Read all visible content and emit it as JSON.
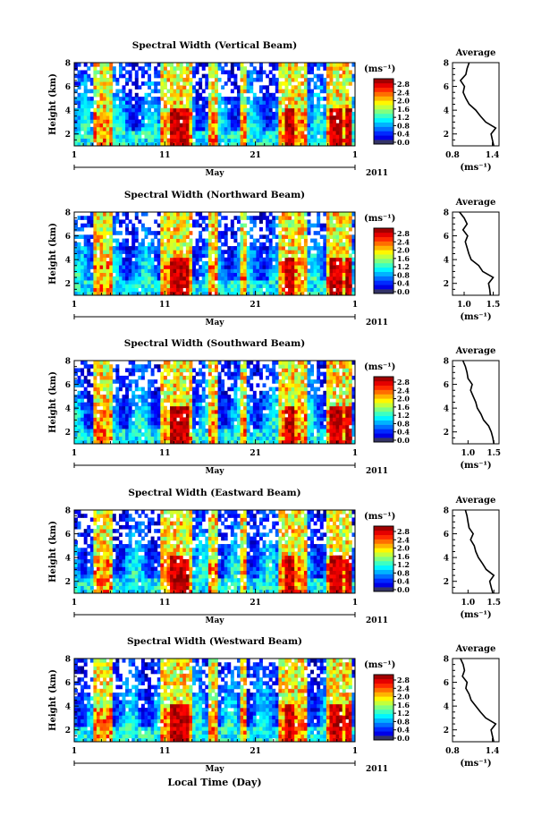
{
  "figure": {
    "footer_xlabel": "Local Time (Day)"
  },
  "chart_data": [
    {
      "type": "heatmap",
      "title": "Spectral Width (Vertical Beam)",
      "ylabel": "Height (km)",
      "ylim": [
        1,
        8
      ],
      "yticks": [
        2,
        4,
        6,
        8
      ],
      "xticks": [
        "1",
        "11",
        "21",
        "1"
      ],
      "month": "May",
      "year": "2011",
      "colorbar": {
        "unit": "(ms⁻¹)",
        "ticks": [
          "0.0",
          "0.4",
          "0.8",
          "1.2",
          "1.6",
          "2.0",
          "2.4",
          "2.8"
        ],
        "range": [
          0,
          3.0
        ]
      },
      "profile": {
        "title": "Average",
        "xlabel": "(ms⁻¹)",
        "xlim": [
          0.8,
          1.5
        ],
        "xticks": [
          0.8,
          1.4
        ],
        "height_km": [
          1.0,
          1.5,
          2.0,
          2.5,
          3.0,
          3.5,
          4.0,
          4.5,
          5.0,
          5.5,
          6.0,
          6.5,
          7.0,
          7.5,
          8.0
        ],
        "width": [
          1.42,
          1.4,
          1.38,
          1.45,
          1.3,
          1.22,
          1.15,
          1.05,
          1.0,
          0.96,
          0.98,
          0.92,
          1.0,
          1.02,
          1.05
        ]
      }
    },
    {
      "type": "heatmap",
      "title": "Spectral Width (Northward Beam)",
      "ylabel": "Height (km)",
      "ylim": [
        1,
        8
      ],
      "yticks": [
        2,
        4,
        6,
        8
      ],
      "xticks": [
        "1",
        "11",
        "21",
        "1"
      ],
      "month": "May",
      "year": "2011",
      "colorbar": {
        "unit": "(ms⁻¹)",
        "ticks": [
          "0.0",
          "0.4",
          "0.8",
          "1.2",
          "1.6",
          "2.0",
          "2.4",
          "2.8"
        ],
        "range": [
          0,
          3.0
        ]
      },
      "profile": {
        "title": "Average",
        "xlabel": "(ms⁻¹)",
        "xlim": [
          0.8,
          1.6
        ],
        "xticks": [
          1.0,
          1.5
        ],
        "height_km": [
          1.0,
          1.5,
          2.0,
          2.5,
          3.0,
          3.5,
          4.0,
          4.5,
          5.0,
          5.5,
          6.0,
          6.5,
          7.0,
          7.5,
          8.0
        ],
        "width": [
          1.45,
          1.44,
          1.42,
          1.5,
          1.32,
          1.25,
          1.12,
          1.08,
          1.05,
          1.02,
          1.06,
          0.98,
          1.05,
          1.0,
          0.92
        ]
      }
    },
    {
      "type": "heatmap",
      "title": "Spectral Width (Southward Beam)",
      "ylabel": "Height (km)",
      "ylim": [
        1,
        8
      ],
      "yticks": [
        2,
        4,
        6,
        8
      ],
      "xticks": [
        "1",
        "11",
        "21",
        "1"
      ],
      "month": "May",
      "year": "2011",
      "colorbar": {
        "unit": "(ms⁻¹)",
        "ticks": [
          "0.0",
          "0.4",
          "0.8",
          "1.2",
          "1.6",
          "2.0",
          "2.4",
          "2.8"
        ],
        "range": [
          0,
          3.0
        ]
      },
      "profile": {
        "title": "Average",
        "xlabel": "(ms⁻¹)",
        "xlim": [
          0.7,
          1.6
        ],
        "xticks": [
          1.0,
          1.5
        ],
        "height_km": [
          1.0,
          1.5,
          2.0,
          2.5,
          3.0,
          3.5,
          4.0,
          4.5,
          5.0,
          5.5,
          6.0,
          6.5,
          7.0,
          7.5,
          8.0
        ],
        "width": [
          1.5,
          1.48,
          1.45,
          1.4,
          1.3,
          1.25,
          1.18,
          1.15,
          1.1,
          1.05,
          1.08,
          1.0,
          0.98,
          0.95,
          0.9
        ]
      }
    },
    {
      "type": "heatmap",
      "title": "Spectral Width (Eastward Beam)",
      "ylabel": "Height (km)",
      "ylim": [
        1,
        8
      ],
      "yticks": [
        2,
        4,
        6,
        8
      ],
      "xticks": [
        "1",
        "11",
        "21",
        "1"
      ],
      "month": "May",
      "year": "2011",
      "colorbar": {
        "unit": "(ms⁻¹)",
        "ticks": [
          "0.0",
          "0.4",
          "0.8",
          "1.2",
          "1.6",
          "2.0",
          "2.4",
          "2.8"
        ],
        "range": [
          0,
          3.0
        ]
      },
      "profile": {
        "title": "Average",
        "xlabel": "(ms⁻¹)",
        "xlim": [
          0.7,
          1.6
        ],
        "xticks": [
          1.0,
          1.5
        ],
        "height_km": [
          1.0,
          1.5,
          2.0,
          2.5,
          3.0,
          3.5,
          4.0,
          4.5,
          5.0,
          5.5,
          6.0,
          6.5,
          7.0,
          7.5,
          8.0
        ],
        "width": [
          1.48,
          1.45,
          1.42,
          1.5,
          1.35,
          1.28,
          1.2,
          1.15,
          1.12,
          1.05,
          1.1,
          1.02,
          1.0,
          0.98,
          0.95
        ]
      }
    },
    {
      "type": "heatmap",
      "title": "Spectral Width (Westward Beam)",
      "ylabel": "Height (km)",
      "ylim": [
        1,
        8
      ],
      "yticks": [
        2,
        4,
        6,
        8
      ],
      "xticks": [
        "1",
        "11",
        "21",
        "1"
      ],
      "month": "May",
      "year": "2011",
      "colorbar": {
        "unit": "(ms⁻¹)",
        "ticks": [
          "0.0",
          "0.4",
          "0.8",
          "1.2",
          "1.6",
          "2.0",
          "2.4",
          "2.8"
        ],
        "range": [
          0,
          3.0
        ]
      },
      "profile": {
        "title": "Average",
        "xlabel": "(ms⁻¹)",
        "xlim": [
          0.8,
          1.5
        ],
        "xticks": [
          0.8,
          1.4
        ],
        "height_km": [
          1.0,
          1.5,
          2.0,
          2.5,
          3.0,
          3.5,
          4.0,
          4.5,
          5.0,
          5.5,
          6.0,
          6.5,
          7.0,
          7.5,
          8.0
        ],
        "width": [
          1.42,
          1.4,
          1.38,
          1.45,
          1.3,
          1.22,
          1.15,
          1.08,
          1.05,
          1.0,
          1.02,
          0.95,
          0.98,
          0.96,
          0.92
        ]
      }
    }
  ]
}
